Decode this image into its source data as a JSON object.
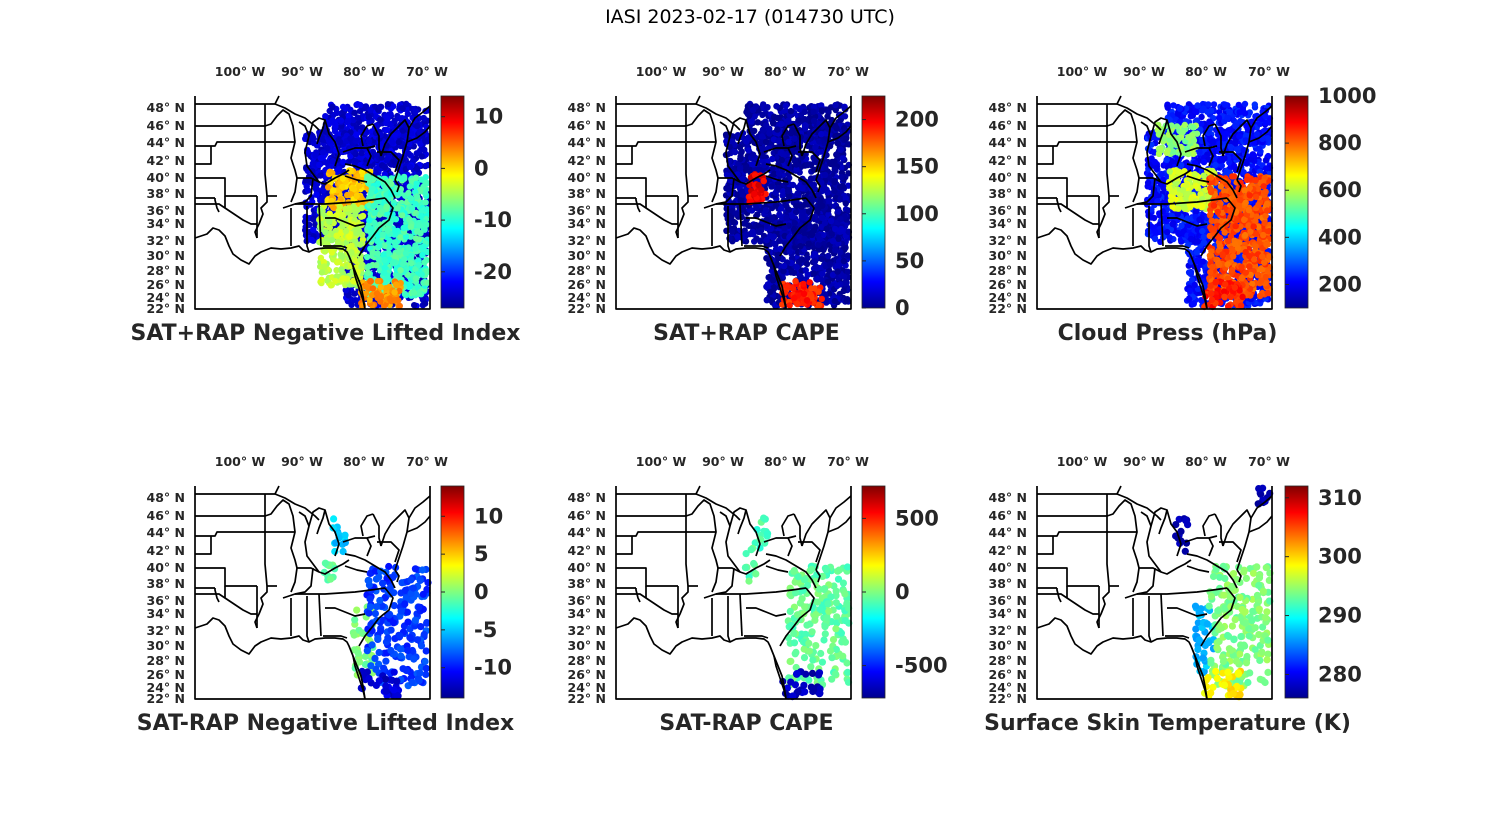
{
  "figure_title": "IASI 2023-02-17 (014730 UTC)",
  "colors": {
    "jet": [
      "#00008f",
      "#0000ff",
      "#0080ff",
      "#00ffff",
      "#80ff80",
      "#ffff00",
      "#ff8000",
      "#ff0000",
      "#800000"
    ]
  },
  "chart_data": [
    {
      "type": "heatmap",
      "title": "SAT+RAP Negative Lifted Index",
      "x_ticks": [
        "100° W",
        "90° W",
        "80° W",
        "70° W"
      ],
      "y_ticks": [
        "48° N",
        "46° N",
        "44° N",
        "42° N",
        "40° N",
        "38° N",
        "36° N",
        "34° N",
        "32° N",
        "30° N",
        "28° N",
        "26° N",
        "24° N",
        "22° N"
      ],
      "colorbar": {
        "min": -27,
        "max": 14,
        "ticks": [
          10,
          0,
          -10,
          -20
        ]
      },
      "coverage": "swath",
      "fields": [
        {
          "region": "swath",
          "value": -24
        },
        {
          "region": "ohio-valley",
          "value": 1
        },
        {
          "region": "southeast",
          "value": -4
        },
        {
          "region": "atlantic",
          "value": -9
        },
        {
          "region": "south-tip",
          "value": 3
        }
      ]
    },
    {
      "type": "heatmap",
      "title": "SAT+RAP CAPE",
      "x_ticks": [
        "100° W",
        "90° W",
        "80° W",
        "70° W"
      ],
      "y_ticks": [
        "48° N",
        "46° N",
        "44° N",
        "42° N",
        "40° N",
        "38° N",
        "36° N",
        "34° N",
        "32° N",
        "30° N",
        "28° N",
        "26° N",
        "24° N",
        "22° N"
      ],
      "colorbar": {
        "min": 0,
        "max": 225,
        "ticks": [
          200,
          150,
          100,
          50,
          0
        ]
      },
      "coverage": "swath",
      "fields": [
        {
          "region": "swath",
          "value": 5
        },
        {
          "region": "west-virginia",
          "value": 200
        },
        {
          "region": "south-tip",
          "value": 190
        }
      ]
    },
    {
      "type": "heatmap",
      "title": "Cloud Press (hPa)",
      "x_ticks": [
        "100° W",
        "90° W",
        "80° W",
        "70° W"
      ],
      "y_ticks": [
        "48° N",
        "46° N",
        "44° N",
        "42° N",
        "40° N",
        "38° N",
        "36° N",
        "34° N",
        "32° N",
        "30° N",
        "28° N",
        "26° N",
        "24° N",
        "22° N"
      ],
      "colorbar": {
        "min": 100,
        "max": 1000,
        "ticks": [
          1000,
          800,
          600,
          400,
          200
        ]
      },
      "coverage": "swath",
      "fields": [
        {
          "region": "swath",
          "value": 220
        },
        {
          "region": "great-lakes",
          "value": 560
        },
        {
          "region": "ohio-valley",
          "value": 620
        },
        {
          "region": "atlantic",
          "value": 820
        },
        {
          "region": "south-tip",
          "value": 860
        }
      ]
    },
    {
      "type": "heatmap",
      "title": "SAT-RAP Negative Lifted Index",
      "x_ticks": [
        "100° W",
        "90° W",
        "80° W",
        "70° W"
      ],
      "y_ticks": [
        "48° N",
        "46° N",
        "44° N",
        "42° N",
        "40° N",
        "38° N",
        "36° N",
        "34° N",
        "32° N",
        "30° N",
        "28° N",
        "26° N",
        "24° N",
        "22° N"
      ],
      "colorbar": {
        "min": -14,
        "max": 14,
        "ticks": [
          10,
          5,
          0,
          -5,
          -10
        ]
      },
      "coverage": "sparse",
      "fields": [
        {
          "region": "michigan",
          "value": -5
        },
        {
          "region": "indiana",
          "value": -1
        },
        {
          "region": "georgia-coast",
          "value": 0
        },
        {
          "region": "atlantic",
          "value": -9
        },
        {
          "region": "south-tip",
          "value": -12
        }
      ]
    },
    {
      "type": "heatmap",
      "title": "SAT-RAP CAPE",
      "x_ticks": [
        "100° W",
        "90° W",
        "80° W",
        "70° W"
      ],
      "y_ticks": [
        "48° N",
        "46° N",
        "44° N",
        "42° N",
        "40° N",
        "38° N",
        "36° N",
        "34° N",
        "32° N",
        "30° N",
        "28° N",
        "26° N",
        "24° N",
        "22° N"
      ],
      "colorbar": {
        "min": -720,
        "max": 720,
        "ticks": [
          500,
          0,
          -500
        ]
      },
      "coverage": "sparse",
      "fields": [
        {
          "region": "michigan",
          "value": -80
        },
        {
          "region": "indiana",
          "value": -60
        },
        {
          "region": "atlantic",
          "value": -40
        },
        {
          "region": "south-tip",
          "value": -650
        }
      ]
    },
    {
      "type": "heatmap",
      "title": "Surface Skin Temperature (K)",
      "x_ticks": [
        "100° W",
        "90° W",
        "80° W",
        "70° W"
      ],
      "y_ticks": [
        "48° N",
        "46° N",
        "44° N",
        "42° N",
        "40° N",
        "38° N",
        "36° N",
        "34° N",
        "32° N",
        "30° N",
        "28° N",
        "26° N",
        "24° N",
        "22° N"
      ],
      "colorbar": {
        "min": 276,
        "max": 312,
        "ticks": [
          310,
          300,
          290,
          280
        ]
      },
      "coverage": "sparse",
      "fields": [
        {
          "region": "michigan",
          "value": 277
        },
        {
          "region": "maine",
          "value": 277
        },
        {
          "region": "georgia-coast",
          "value": 287
        },
        {
          "region": "atlantic",
          "value": 294
        },
        {
          "region": "south-tip",
          "value": 299
        }
      ]
    }
  ]
}
